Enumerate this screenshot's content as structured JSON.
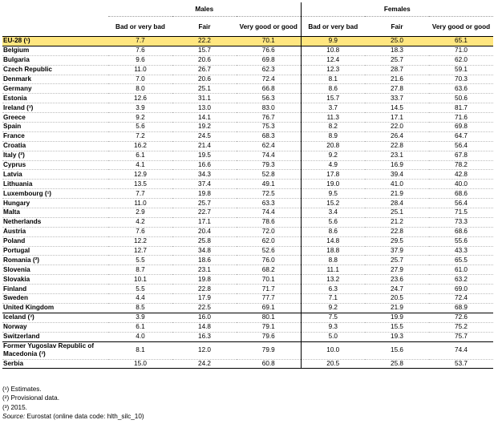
{
  "header": {
    "males": "Males",
    "females": "Females",
    "cols": [
      "Bad or very bad",
      "Fair",
      "Very good or good"
    ]
  },
  "rows": [
    {
      "name": "EU-28 (¹)",
      "m": [
        "7.7",
        "22.2",
        "70.1"
      ],
      "f": [
        "9.9",
        "25.0",
        "65.1"
      ]
    },
    {
      "name": "Belgium",
      "m": [
        "7.6",
        "15.7",
        "76.6"
      ],
      "f": [
        "10.8",
        "18.3",
        "71.0"
      ]
    },
    {
      "name": "Bulgaria",
      "m": [
        "9.6",
        "20.6",
        "69.8"
      ],
      "f": [
        "12.4",
        "25.7",
        "62.0"
      ]
    },
    {
      "name": "Czech Republic",
      "m": [
        "11.0",
        "26.7",
        "62.3"
      ],
      "f": [
        "12.3",
        "28.7",
        "59.1"
      ]
    },
    {
      "name": "Denmark",
      "m": [
        "7.0",
        "20.6",
        "72.4"
      ],
      "f": [
        "8.1",
        "21.6",
        "70.3"
      ]
    },
    {
      "name": "Germany",
      "m": [
        "8.0",
        "25.1",
        "66.8"
      ],
      "f": [
        "8.6",
        "27.8",
        "63.6"
      ]
    },
    {
      "name": "Estonia",
      "m": [
        "12.6",
        "31.1",
        "56.3"
      ],
      "f": [
        "15.7",
        "33.7",
        "50.6"
      ]
    },
    {
      "name": "Ireland (³)",
      "m": [
        "3.9",
        "13.0",
        "83.0"
      ],
      "f": [
        "3.7",
        "14.5",
        "81.7"
      ]
    },
    {
      "name": "Greece",
      "m": [
        "9.2",
        "14.1",
        "76.7"
      ],
      "f": [
        "11.3",
        "17.1",
        "71.6"
      ]
    },
    {
      "name": "Spain",
      "m": [
        "5.6",
        "19.2",
        "75.3"
      ],
      "f": [
        "8.2",
        "22.0",
        "69.8"
      ]
    },
    {
      "name": "France",
      "m": [
        "7.2",
        "24.5",
        "68.3"
      ],
      "f": [
        "8.9",
        "26.4",
        "64.7"
      ]
    },
    {
      "name": "Croatia",
      "m": [
        "16.2",
        "21.4",
        "62.4"
      ],
      "f": [
        "20.8",
        "22.8",
        "56.4"
      ]
    },
    {
      "name": "Italy (²)",
      "m": [
        "6.1",
        "19.5",
        "74.4"
      ],
      "f": [
        "9.2",
        "23.1",
        "67.8"
      ]
    },
    {
      "name": "Cyprus",
      "m": [
        "4.1",
        "16.6",
        "79.3"
      ],
      "f": [
        "4.9",
        "16.9",
        "78.2"
      ]
    },
    {
      "name": "Latvia",
      "m": [
        "12.9",
        "34.3",
        "52.8"
      ],
      "f": [
        "17.8",
        "39.4",
        "42.8"
      ]
    },
    {
      "name": "Lithuania",
      "m": [
        "13.5",
        "37.4",
        "49.1"
      ],
      "f": [
        "19.0",
        "41.0",
        "40.0"
      ]
    },
    {
      "name": "Luxembourg (¹)",
      "m": [
        "7.7",
        "19.8",
        "72.5"
      ],
      "f": [
        "9.5",
        "21.9",
        "68.6"
      ]
    },
    {
      "name": "Hungary",
      "m": [
        "11.0",
        "25.7",
        "63.3"
      ],
      "f": [
        "15.2",
        "28.4",
        "56.4"
      ]
    },
    {
      "name": "Malta",
      "m": [
        "2.9",
        "22.7",
        "74.4"
      ],
      "f": [
        "3.4",
        "25.1",
        "71.5"
      ]
    },
    {
      "name": "Netherlands",
      "m": [
        "4.2",
        "17.1",
        "78.6"
      ],
      "f": [
        "5.6",
        "21.2",
        "73.3"
      ]
    },
    {
      "name": "Austria",
      "m": [
        "7.6",
        "20.4",
        "72.0"
      ],
      "f": [
        "8.6",
        "22.8",
        "68.6"
      ]
    },
    {
      "name": "Poland",
      "m": [
        "12.2",
        "25.8",
        "62.0"
      ],
      "f": [
        "14.8",
        "29.5",
        "55.6"
      ]
    },
    {
      "name": "Portugal",
      "m": [
        "12.7",
        "34.8",
        "52.6"
      ],
      "f": [
        "18.8",
        "37.9",
        "43.3"
      ]
    },
    {
      "name": "Romania (²)",
      "m": [
        "5.5",
        "18.6",
        "76.0"
      ],
      "f": [
        "8.8",
        "25.7",
        "65.5"
      ]
    },
    {
      "name": "Slovenia",
      "m": [
        "8.7",
        "23.1",
        "68.2"
      ],
      "f": [
        "11.1",
        "27.9",
        "61.0"
      ]
    },
    {
      "name": "Slovakia",
      "m": [
        "10.1",
        "19.8",
        "70.1"
      ],
      "f": [
        "13.2",
        "23.6",
        "63.2"
      ]
    },
    {
      "name": "Finland",
      "m": [
        "5.5",
        "22.8",
        "71.7"
      ],
      "f": [
        "6.3",
        "24.7",
        "69.0"
      ]
    },
    {
      "name": "Sweden",
      "m": [
        "4.4",
        "17.9",
        "77.7"
      ],
      "f": [
        "7.1",
        "20.5",
        "72.4"
      ]
    },
    {
      "name": "United Kingdom",
      "m": [
        "8.5",
        "22.5",
        "69.1"
      ],
      "f": [
        "9.2",
        "21.9",
        "68.9"
      ]
    },
    {
      "name": "Iceland (³)",
      "m": [
        "3.9",
        "16.0",
        "80.1"
      ],
      "f": [
        "7.5",
        "19.9",
        "72.6"
      ]
    },
    {
      "name": "Norway",
      "m": [
        "6.1",
        "14.8",
        "79.1"
      ],
      "f": [
        "9.3",
        "15.5",
        "75.2"
      ]
    },
    {
      "name": "Switzerland",
      "m": [
        "4.0",
        "16.3",
        "79.6"
      ],
      "f": [
        "5.0",
        "19.3",
        "75.7"
      ]
    },
    {
      "name": "Former Yugoslav Republic of Macedonia (³)",
      "m": [
        "8.1",
        "12.0",
        "79.9"
      ],
      "f": [
        "10.0",
        "15.6",
        "74.4"
      ]
    },
    {
      "name": "Serbia",
      "m": [
        "15.0",
        "24.2",
        "60.8"
      ],
      "f": [
        "20.5",
        "25.8",
        "53.7"
      ]
    }
  ],
  "notes": [
    "(¹) Estimates.",
    "(²) Provisional data.",
    "(³) 2015."
  ],
  "source": {
    "label": "Source:",
    "text": "Eurostat (online data code: hlth_silc_10)"
  }
}
